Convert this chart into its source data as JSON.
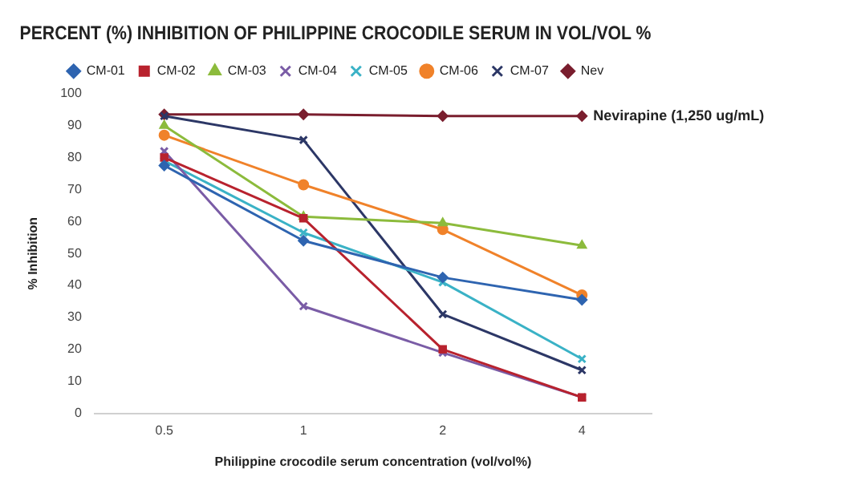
{
  "chart_data": {
    "type": "line",
    "title": "PERCENT (%) INHIBITION OF PHILIPPINE CROCODILE SERUM IN VOL/VOL %",
    "xlabel": "Philippine crocodile serum concentration (vol/vol%)",
    "ylabel": "% Inhibition",
    "categories": [
      "0.5",
      "1",
      "2",
      "4"
    ],
    "series": [
      {
        "name": "CM-01",
        "color": "#2e64b0",
        "marker": "diamond",
        "values": [
          77.5,
          54,
          42.5,
          35.5
        ]
      },
      {
        "name": "CM-02",
        "color": "#b8222e",
        "marker": "square",
        "values": [
          80,
          61,
          20,
          5
        ]
      },
      {
        "name": "CM-03",
        "color": "#8cbb3c",
        "marker": "triangle",
        "values": [
          90,
          61.5,
          59.5,
          52.5
        ]
      },
      {
        "name": "CM-04",
        "color": "#7a5ca6",
        "marker": "cross",
        "values": [
          82,
          33.5,
          19,
          5
        ]
      },
      {
        "name": "CM-05",
        "color": "#3ab2c6",
        "marker": "cross",
        "values": [
          79,
          56.5,
          41,
          17
        ]
      },
      {
        "name": "CM-06",
        "color": "#f0822a",
        "marker": "circle",
        "values": [
          87,
          71.5,
          57.5,
          37
        ]
      },
      {
        "name": "CM-07",
        "color": "#2c3766",
        "marker": "cross",
        "values": [
          93,
          85.5,
          31,
          13.5
        ]
      },
      {
        "name": "Nev",
        "color": "#7a1e2e",
        "marker": "diamond",
        "values": [
          93.5,
          93.5,
          93,
          93
        ]
      }
    ],
    "annotations": [
      {
        "text": "Nevirapine (1,250 ug/mL)",
        "x": "4",
        "y": 93
      }
    ],
    "ylim": [
      0,
      100
    ],
    "yticks": [
      0,
      10,
      20,
      30,
      40,
      50,
      60,
      70,
      80,
      90,
      100
    ],
    "grid": false,
    "legend": "top"
  }
}
